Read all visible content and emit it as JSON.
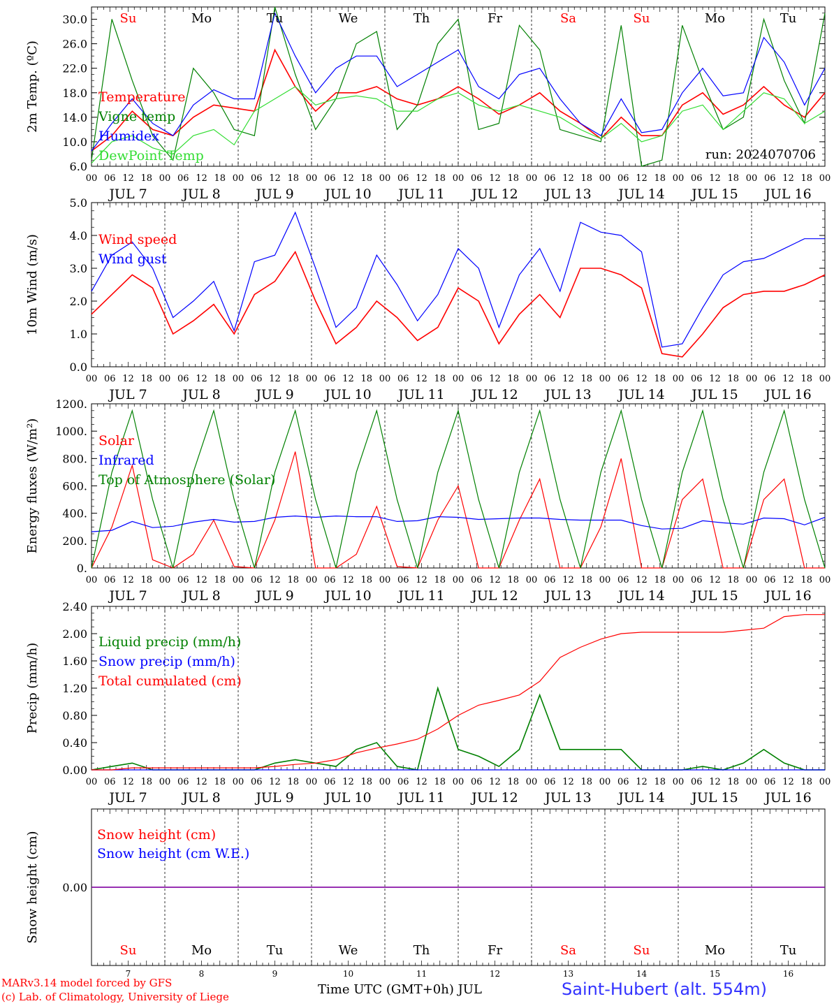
{
  "days": [
    "Su",
    "Mo",
    "Tu",
    "We",
    "Th",
    "Fr",
    "Sa",
    "Su",
    "Mo",
    "Tu"
  ],
  "day_colors": [
    "#ff0000",
    "#000000",
    "#000000",
    "#000000",
    "#000000",
    "#000000",
    "#ff0000",
    "#ff0000",
    "#000000",
    "#000000"
  ],
  "date_labels": [
    "JUL  7",
    "JUL  8",
    "JUL  9",
    "JUL 10",
    "JUL 11",
    "JUL 12",
    "JUL 13",
    "JUL 14",
    "JUL 15",
    "JUL 16"
  ],
  "day_numbers": [
    "7",
    "8",
    "9",
    "10",
    "11",
    "12",
    "13",
    "14",
    "15",
    "16"
  ],
  "hour_labels": [
    "00",
    "06",
    "12",
    "18"
  ],
  "run_label": "run: 2024070706",
  "footer": {
    "credit_line1": "MARv3.14 model forced by GFS",
    "credit_line2": "(c) Lab. of Climatology, University of Liege",
    "xlabel": "Time UTC (GMT+0h) JUL",
    "station": "Saint-Hubert (alt. 554m)"
  },
  "colors": {
    "red": "#ff0000",
    "darkgreen": "#008000",
    "blue": "#0000ff",
    "lightgreen": "#33dd33",
    "purple": "#8000a0"
  },
  "chart_data": [
    {
      "type": "line",
      "ylabel": "2m Temp. (ºC)",
      "ylim": [
        6,
        32
      ],
      "yticks": [
        "6.0",
        "10.0",
        "14.0",
        "18.0",
        "22.0",
        "26.0",
        "30.0"
      ],
      "x_step_hours": 6,
      "series": [
        {
          "name": "Temperature",
          "color": "#ff0000",
          "values": [
            8.5,
            11,
            15,
            12,
            11,
            14,
            16,
            15.5,
            15,
            25,
            19,
            15,
            18,
            18,
            19,
            17,
            16,
            17,
            19,
            17,
            14.5,
            16,
            18,
            15,
            13,
            10.5,
            14,
            11,
            11,
            16,
            18,
            14.5,
            16,
            19,
            16,
            14,
            18
          ]
        },
        {
          "name": "Vigne temp",
          "color": "#008000",
          "values": [
            7,
            30,
            20,
            11,
            7,
            22,
            18,
            12,
            11,
            32,
            21,
            12,
            17,
            26,
            28,
            12,
            16,
            26,
            30,
            12,
            13,
            29,
            25,
            12,
            11,
            10,
            29,
            6,
            7,
            29,
            20,
            12,
            14,
            30,
            20,
            13,
            31
          ]
        },
        {
          "name": "Humidex",
          "color": "#0000ff",
          "values": [
            8.5,
            13,
            17,
            13,
            11,
            16,
            18.5,
            17,
            17,
            31,
            24,
            18,
            22,
            24,
            24,
            19,
            21,
            23,
            25,
            19,
            17,
            21,
            22,
            17,
            13,
            11,
            17,
            11.5,
            12,
            18,
            22,
            17.5,
            18,
            27,
            23,
            16,
            22
          ]
        },
        {
          "name": "DewPoint Temp",
          "color": "#33dd33",
          "values": [
            6.5,
            10,
            11,
            9,
            8,
            11,
            12,
            9.5,
            15,
            17,
            19,
            16,
            17,
            17.5,
            17,
            15,
            15,
            17,
            18,
            16,
            15,
            16,
            15,
            14,
            12,
            10.5,
            13,
            10,
            11,
            15,
            16,
            12,
            15,
            18,
            17,
            13,
            15
          ]
        }
      ]
    },
    {
      "type": "line",
      "ylabel": "10m Wind (m/s)",
      "ylim": [
        0,
        5
      ],
      "yticks": [
        "0.0",
        "1.0",
        "2.0",
        "3.0",
        "4.0",
        "5.0"
      ],
      "x_step_hours": 6,
      "series": [
        {
          "name": "Wind speed",
          "color": "#ff0000",
          "values": [
            1.6,
            2.2,
            2.8,
            2.4,
            1.0,
            1.4,
            1.9,
            1.0,
            2.2,
            2.6,
            3.5,
            2.0,
            0.7,
            1.2,
            2.0,
            1.5,
            0.8,
            1.2,
            2.4,
            2.0,
            0.7,
            1.6,
            2.2,
            1.5,
            3.0,
            3.0,
            2.8,
            2.4,
            0.4,
            0.3,
            1.0,
            1.8,
            2.2,
            2.3,
            2.3,
            2.5,
            2.8
          ]
        },
        {
          "name": "Wind gust",
          "color": "#0000ff",
          "values": [
            2.3,
            3.4,
            3.8,
            3.0,
            1.5,
            2.0,
            2.6,
            1.1,
            3.2,
            3.4,
            4.7,
            3.0,
            1.2,
            1.8,
            3.4,
            2.5,
            1.4,
            2.2,
            3.6,
            3.0,
            1.2,
            2.8,
            3.6,
            2.3,
            4.4,
            4.1,
            4.0,
            3.5,
            0.6,
            0.7,
            1.8,
            2.8,
            3.2,
            3.3,
            3.6,
            3.9,
            3.9
          ]
        }
      ]
    },
    {
      "type": "line",
      "ylabel": "Energy fluxes (W/m²)",
      "ylim": [
        0,
        1200
      ],
      "yticks": [
        "0.",
        "200.",
        "400.",
        "600.",
        "800.",
        "1000.",
        "1200."
      ],
      "x_step_hours": 6,
      "series": [
        {
          "name": "Solar",
          "color": "#ff0000",
          "values": [
            0,
            300,
            750,
            60,
            0,
            100,
            350,
            10,
            0,
            350,
            850,
            0,
            0,
            100,
            450,
            10,
            0,
            350,
            600,
            0,
            0,
            350,
            650,
            0,
            0,
            300,
            800,
            0,
            0,
            500,
            650,
            0,
            0,
            500,
            650,
            0,
            0
          ]
        },
        {
          "name": "Infrared",
          "color": "#0000ff",
          "values": [
            265,
            275,
            340,
            295,
            305,
            335,
            355,
            335,
            340,
            370,
            380,
            370,
            380,
            375,
            375,
            340,
            345,
            375,
            370,
            355,
            360,
            365,
            365,
            355,
            350,
            350,
            350,
            310,
            285,
            290,
            345,
            330,
            320,
            365,
            360,
            315,
            370
          ]
        },
        {
          "name": "Top of Atmosphere (Solar)",
          "color": "#008000",
          "values": [
            0,
            700,
            1150,
            500,
            0,
            700,
            1150,
            500,
            0,
            700,
            1150,
            500,
            0,
            700,
            1150,
            500,
            0,
            700,
            1150,
            500,
            0,
            700,
            1150,
            500,
            0,
            700,
            1150,
            500,
            0,
            700,
            1150,
            500,
            0,
            700,
            1150,
            500,
            0
          ]
        }
      ]
    },
    {
      "type": "line",
      "ylabel": "Precip (mm/h)",
      "ylim": [
        0,
        2.4
      ],
      "yticks": [
        "0.00",
        "0.40",
        "0.80",
        "1.20",
        "1.60",
        "2.00",
        "2.40"
      ],
      "x_step_hours": 6,
      "series": [
        {
          "name": "Liquid precip (mm/h)",
          "color": "#008000",
          "values": [
            0,
            0.05,
            0.1,
            0,
            0,
            0,
            0,
            0,
            0,
            0.1,
            0.15,
            0.1,
            0.05,
            0.3,
            0.4,
            0.05,
            0,
            1.2,
            0.3,
            0.2,
            0.05,
            0.3,
            1.1,
            0.3,
            0.3,
            0.3,
            0.3,
            0,
            0,
            0,
            0.05,
            0,
            0.1,
            0.3,
            0.1,
            0,
            0
          ]
        },
        {
          "name": "Snow precip (mm/h)",
          "color": "#0000ff",
          "values": [
            0,
            0,
            0,
            0,
            0,
            0,
            0,
            0,
            0,
            0,
            0,
            0,
            0,
            0,
            0,
            0,
            0,
            0,
            0,
            0,
            0,
            0,
            0,
            0,
            0,
            0,
            0,
            0,
            0,
            0,
            0,
            0,
            0,
            0,
            0,
            0,
            0
          ]
        },
        {
          "name": "Total cumulated (cm)",
          "color": "#ff0000",
          "values": [
            0,
            0,
            0.03,
            0.03,
            0.03,
            0.03,
            0.03,
            0.03,
            0.03,
            0.05,
            0.08,
            0.1,
            0.15,
            0.25,
            0.32,
            0.38,
            0.45,
            0.6,
            0.8,
            0.95,
            1.02,
            1.1,
            1.3,
            1.65,
            1.8,
            1.92,
            2.0,
            2.02,
            2.02,
            2.02,
            2.02,
            2.02,
            2.05,
            2.08,
            2.25,
            2.28,
            2.28
          ]
        }
      ]
    },
    {
      "type": "line",
      "ylabel": "Snow height (cm)",
      "ylim": [
        -1,
        1
      ],
      "yticks": [
        "0.00"
      ],
      "x_step_hours": 6,
      "series": [
        {
          "name": "Snow height (cm)",
          "color": "#ff0000",
          "values": [
            0,
            0,
            0,
            0,
            0,
            0,
            0,
            0,
            0,
            0,
            0,
            0,
            0,
            0,
            0,
            0,
            0,
            0,
            0,
            0,
            0,
            0,
            0,
            0,
            0,
            0,
            0,
            0,
            0,
            0,
            0,
            0,
            0,
            0,
            0,
            0,
            0,
            0,
            0,
            0,
            0
          ]
        },
        {
          "name": "Snow height (cm W.E.)",
          "color": "#0000ff",
          "values": [
            0,
            0,
            0,
            0,
            0,
            0,
            0,
            0,
            0,
            0,
            0,
            0,
            0,
            0,
            0,
            0,
            0,
            0,
            0,
            0,
            0,
            0,
            0,
            0,
            0,
            0,
            0,
            0,
            0,
            0,
            0,
            0,
            0,
            0,
            0,
            0,
            0,
            0,
            0,
            0,
            0
          ]
        }
      ]
    }
  ]
}
